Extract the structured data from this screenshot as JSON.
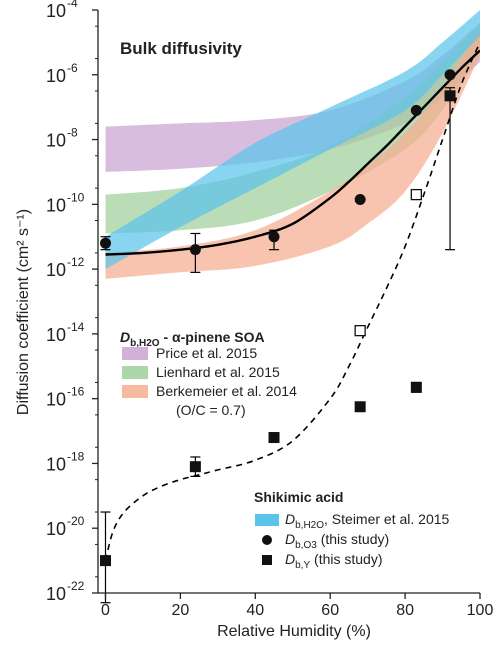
{
  "chart_data": {
    "type": "scatter",
    "title": "Bulk diffusivity",
    "xlabel": "Relative Humidity (%)",
    "ylabel": "Diffusion coefficient (cm² s⁻¹)",
    "xlim": [
      -2,
      100
    ],
    "ylim_log10": [
      -22,
      -4
    ],
    "x_ticks": [
      0,
      20,
      40,
      60,
      80,
      100
    ],
    "x_tick_labels": [
      "0",
      "20",
      "40",
      "60",
      "80",
      "100"
    ],
    "y_ticks_log10": [
      -22,
      -20,
      -18,
      -16,
      -14,
      -12,
      -10,
      -8,
      -6,
      -4
    ],
    "y_tick_bases": [
      "10",
      "10",
      "10",
      "10",
      "10",
      "10",
      "10",
      "10",
      "10",
      "10"
    ],
    "y_tick_exponents": [
      "-22",
      "-20",
      "-18",
      "-16",
      "-14",
      "-12",
      "-10",
      "-8",
      "-6",
      "-4"
    ],
    "legend_top": {
      "title_main": "D",
      "title_sub": "b,H2O",
      "title_rest": " - α-pinene SOA",
      "entries": [
        {
          "label": "Price et al. 2015",
          "color": "#c9a3d1"
        },
        {
          "label": "Lienhard et al. 2015",
          "color": "#9fcf9a"
        },
        {
          "label": "Berkemeier et al. 2014",
          "color": "#f7ad90"
        }
      ],
      "note": "(O/C = 0.7)"
    },
    "legend_bottom": {
      "title": "Shikimic acid",
      "entries": [
        {
          "main": "D",
          "sub": "b,H2O",
          "rest": ", Steimer et al. 2015",
          "marker": "band",
          "color": "#5bc4ea"
        },
        {
          "main": "D",
          "sub": "b,O3",
          "rest": " (this study)",
          "marker": "circle",
          "color": "#111111"
        },
        {
          "main": "D",
          "sub": "b,Y",
          "rest": " (this study)",
          "marker": "square",
          "color": "#111111"
        }
      ]
    },
    "bands": [
      {
        "name": "Price et al. 2015",
        "color": "#c9a3d1",
        "x": [
          0,
          20,
          40,
          60,
          80,
          90,
          100
        ],
        "lower_log10": [
          -9.0,
          -8.9,
          -8.7,
          -8.3,
          -7.5,
          -6.7,
          -5.6
        ],
        "upper_log10": [
          -7.6,
          -7.5,
          -7.4,
          -7.1,
          -6.2,
          -5.4,
          -4.4
        ]
      },
      {
        "name": "Lienhard et al. 2015",
        "color": "#9fcf9a",
        "x": [
          0,
          20,
          40,
          60,
          80,
          90,
          100
        ],
        "lower_log10": [
          -10.9,
          -10.8,
          -10.5,
          -9.6,
          -8.3,
          -7.1,
          -5.4
        ],
        "upper_log10": [
          -9.7,
          -9.5,
          -9.0,
          -8.2,
          -6.7,
          -5.6,
          -4.4
        ]
      },
      {
        "name": "Berkemeier et al. 2014",
        "color": "#f7ad90",
        "x": [
          0,
          20,
          40,
          60,
          70,
          80,
          90,
          100
        ],
        "lower_log10": [
          -12.3,
          -12.1,
          -11.9,
          -11.3,
          -10.6,
          -9.6,
          -7.8,
          -5.4
        ],
        "upper_log10": [
          -11.5,
          -11.3,
          -10.8,
          -9.6,
          -8.8,
          -7.8,
          -6.4,
          -4.5
        ]
      },
      {
        "name": "Steimer et al. 2015",
        "color": "#5bc4ea",
        "x": [
          0,
          20,
          40,
          60,
          80,
          90,
          100
        ],
        "lower_log10": [
          -12.0,
          -10.7,
          -9.5,
          -8.3,
          -7.1,
          -6.0,
          -4.8
        ],
        "upper_log10": [
          -11.0,
          -9.6,
          -8.1,
          -7.0,
          -5.9,
          -5.0,
          -4.0
        ]
      }
    ],
    "fit_solid": {
      "x": [
        0,
        10,
        20,
        30,
        40,
        50,
        60,
        65,
        70,
        75,
        80,
        85,
        90,
        95,
        100
      ],
      "y_log10": [
        -11.55,
        -11.5,
        -11.4,
        -11.25,
        -11.0,
        -10.6,
        -9.8,
        -9.3,
        -8.75,
        -8.2,
        -7.6,
        -7.0,
        -6.4,
        -5.8,
        -5.25
      ]
    },
    "fit_dashed": {
      "x": [
        0,
        2,
        5,
        10,
        15,
        20,
        25,
        30,
        40,
        50,
        60,
        65,
        70,
        75,
        80,
        85,
        90,
        95,
        100
      ],
      "y_log10": [
        -21.0,
        -20.1,
        -19.5,
        -19.0,
        -18.7,
        -18.5,
        -18.35,
        -18.2,
        -17.9,
        -17.3,
        -16.0,
        -15.0,
        -13.8,
        -12.6,
        -11.3,
        -9.7,
        -8.0,
        -6.3,
        -5.0
      ]
    },
    "circles": {
      "x": [
        0,
        24,
        45,
        68,
        83,
        92
      ],
      "y_log10": [
        -11.2,
        -11.4,
        -11.0,
        -9.85,
        -7.1,
        -6.0
      ],
      "err_low_log10": [
        -11.4,
        -12.1,
        -11.4,
        null,
        null,
        null
      ],
      "err_high_log10": [
        -11.0,
        -10.9,
        -10.8,
        null,
        null,
        null
      ]
    },
    "squares_filled": {
      "x": [
        0,
        24,
        45,
        68,
        83,
        92
      ],
      "y_log10": [
        -21.0,
        -18.1,
        -17.2,
        -16.25,
        -15.65,
        -6.65
      ],
      "err_low_log10": [
        -22.3,
        -18.4,
        null,
        null,
        -15.8,
        -11.4
      ],
      "err_high_log10": [
        -19.5,
        -17.8,
        null,
        null,
        -15.5,
        -6.4
      ]
    },
    "squares_open": {
      "x": [
        68,
        83
      ],
      "y_log10": [
        -13.9,
        -9.7
      ]
    }
  }
}
